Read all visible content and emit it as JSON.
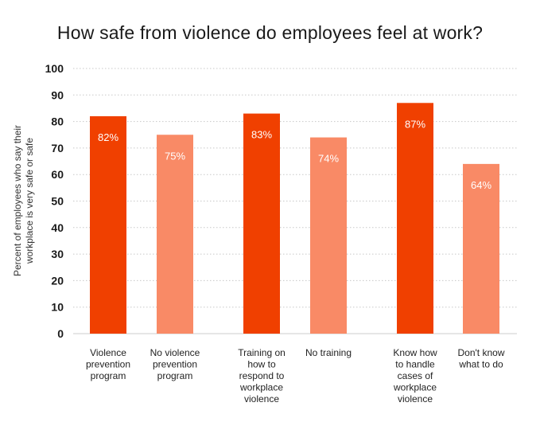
{
  "chart_data": {
    "type": "bar",
    "title": "How safe from violence do employees feel at work?",
    "ylabel_lines": [
      "Percent of employees who say their",
      "workplace is very safe or safe"
    ],
    "ylim": [
      0,
      100
    ],
    "yticks": [
      0,
      10,
      20,
      30,
      40,
      50,
      60,
      70,
      80,
      90,
      100
    ],
    "grid": true,
    "categories": [
      [
        "Violence",
        "prevention",
        "program"
      ],
      [
        "No violence",
        "prevention",
        "program"
      ],
      [
        "Training on",
        "how to",
        "respond to",
        "workplace",
        "violence"
      ],
      [
        "No training"
      ],
      [
        "Know how",
        "to handle",
        "cases of",
        "workplace",
        "violence"
      ],
      [
        "Don't know",
        "what to do"
      ]
    ],
    "values": [
      82,
      75,
      83,
      74,
      87,
      64
    ],
    "data_labels": [
      "82%",
      "75%",
      "83%",
      "74%",
      "87%",
      "64%"
    ],
    "colors": [
      "#f04000",
      "#f98a66",
      "#f04000",
      "#f98a66",
      "#f04000",
      "#f98a66"
    ]
  }
}
